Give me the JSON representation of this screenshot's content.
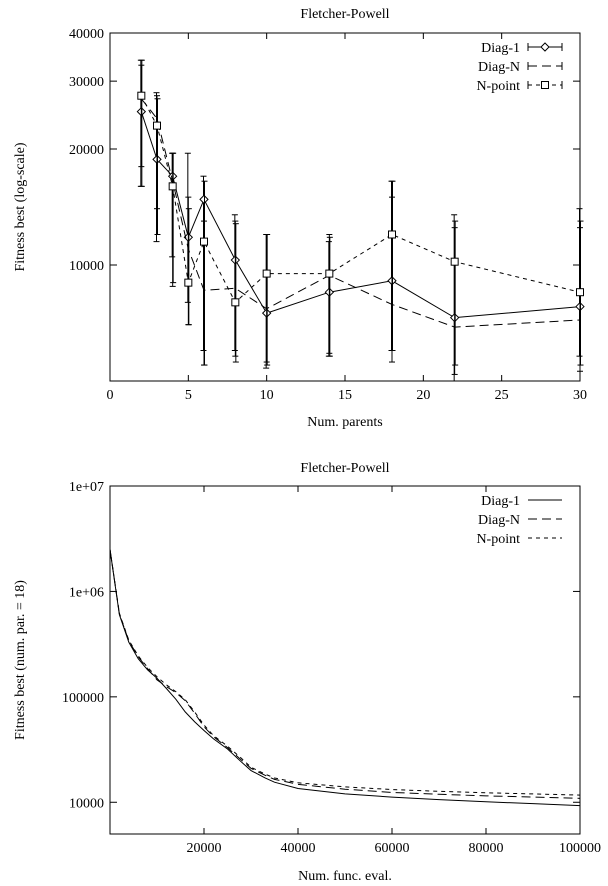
{
  "chart_data": [
    {
      "type": "line",
      "title": "Fletcher-Powell",
      "xlabel": "Num. parents",
      "ylabel": "Fitness best (log-scale)",
      "xlim": [
        0,
        30
      ],
      "ylim": [
        5000,
        40000
      ],
      "yscale": "log",
      "error_bars": true,
      "legend_position": "top-right",
      "xticks": [
        0,
        5,
        10,
        15,
        20,
        25,
        30
      ],
      "yticks": [
        10000,
        20000,
        30000,
        40000
      ],
      "xtick_labels": [
        "0",
        "5",
        "10",
        "15",
        "20",
        "25",
        "30"
      ],
      "ytick_labels": [
        "10000",
        "20000",
        "30000",
        "40000"
      ],
      "x": [
        2,
        3,
        4,
        5,
        6,
        8,
        10,
        14,
        18,
        22,
        30
      ],
      "series": [
        {
          "name": "Diag-1",
          "marker": "diamond",
          "dash": "solid",
          "values": [
            25000,
            18800,
            17000,
            11800,
            14800,
            10300,
            7500,
            8500,
            9100,
            7300,
            7800
          ],
          "err_low": [
            16000,
            11500,
            10500,
            8000,
            6000,
            6000,
            5400,
            5800,
            6000,
            5000,
            5800
          ],
          "err_high": [
            34000,
            28000,
            19500,
            19500,
            17000,
            13500,
            12000,
            11500,
            16500,
            13500,
            14000
          ]
        },
        {
          "name": "Diag-N",
          "marker": "none",
          "dash": "dashed",
          "values": [
            27000,
            24000,
            16500,
            11000,
            8600,
            8700,
            7700,
            9400,
            7900,
            6900,
            7200
          ],
          "err_low": [
            18000,
            14000,
            8800,
            7000,
            5500,
            5800,
            5600,
            5900,
            5600,
            5200,
            5300
          ],
          "err_high": [
            33000,
            27500,
            19500,
            15000,
            13000,
            13000,
            12000,
            12000,
            15000,
            12500,
            12500
          ]
        },
        {
          "name": "N-point",
          "marker": "square",
          "dash": "short-dashed",
          "values": [
            27500,
            23000,
            16000,
            9000,
            11500,
            8000,
            9500,
            9500,
            12000,
            10200,
            8500
          ],
          "err_low": [
            16000,
            12000,
            9000,
            7000,
            5500,
            5600,
            5500,
            5800,
            6000,
            5500,
            5500
          ],
          "err_high": [
            34000,
            27000,
            19500,
            14000,
            16500,
            12800,
            12000,
            11800,
            16500,
            13000,
            13000
          ]
        }
      ]
    },
    {
      "type": "line",
      "title": "Fletcher-Powell",
      "xlabel": "Num. func. eval.",
      "ylabel": "Fitness best (num. par. = 18)",
      "xlim": [
        0,
        100000
      ],
      "ylim": [
        5000,
        10000000
      ],
      "yscale": "log",
      "legend_position": "top-right",
      "xticks": [
        20000,
        40000,
        60000,
        80000,
        100000
      ],
      "yticks": [
        10000,
        100000,
        1000000,
        10000000
      ],
      "xtick_labels": [
        "20000",
        "40000",
        "60000",
        "80000",
        "100000"
      ],
      "ytick_labels": [
        "10000",
        "100000",
        "1e+06",
        "1e+07"
      ],
      "x": [
        0,
        2000,
        4000,
        6000,
        8000,
        10000,
        12000,
        14000,
        16000,
        18000,
        20000,
        22000,
        25000,
        28000,
        30000,
        33000,
        35000,
        40000,
        50000,
        60000,
        70000,
        80000,
        90000,
        100000
      ],
      "series": [
        {
          "name": "Diag-1",
          "dash": "solid",
          "values": [
            2500000,
            600000,
            330000,
            230000,
            180000,
            150000,
            120000,
            95000,
            72000,
            58000,
            48000,
            40000,
            32000,
            24000,
            20000,
            17000,
            15500,
            13500,
            12000,
            11200,
            10600,
            10100,
            9700,
            9300
          ]
        },
        {
          "name": "Diag-N",
          "dash": "dashed",
          "values": [
            2500000,
            610000,
            340000,
            240000,
            185000,
            145000,
            125000,
            110000,
            92000,
            70000,
            52000,
            42000,
            33000,
            25000,
            21000,
            18000,
            16500,
            14800,
            13300,
            12400,
            11900,
            11500,
            11200,
            10900
          ]
        },
        {
          "name": "N-point",
          "dash": "short-dashed",
          "values": [
            2500000,
            620000,
            345000,
            245000,
            190000,
            155000,
            130000,
            112000,
            94000,
            72000,
            54000,
            43000,
            34000,
            26000,
            21500,
            18500,
            17000,
            15300,
            14000,
            13200,
            12700,
            12300,
            12000,
            11700
          ]
        }
      ]
    }
  ]
}
